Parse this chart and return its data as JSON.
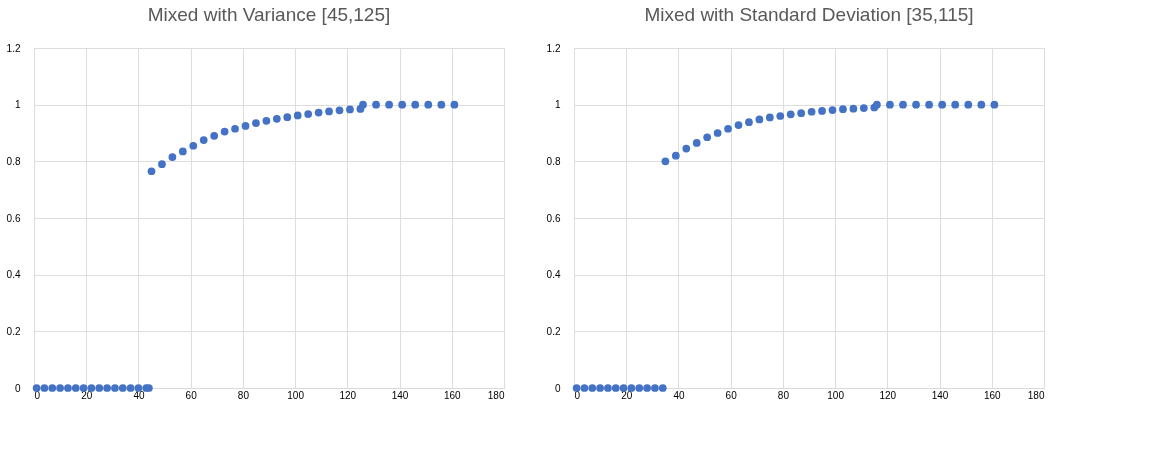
{
  "chart_data": [
    {
      "type": "scatter",
      "title": "Mixed with Variance [45,125]",
      "marker": "circle",
      "grid": true,
      "xlim": [
        0,
        180
      ],
      "xticks": [
        0,
        20,
        40,
        60,
        80,
        100,
        120,
        140,
        160,
        180
      ],
      "ylim": [
        0,
        1.2
      ],
      "yticks": [
        0,
        0.2,
        0.4,
        0.6,
        0.8,
        1,
        1.2
      ],
      "series": [
        {
          "color": "#4472c4",
          "x": [
            1,
            4,
            7,
            10,
            13,
            16,
            19,
            22,
            25,
            28,
            31,
            34,
            37,
            40,
            43,
            44,
            45,
            49,
            53,
            57,
            61,
            65,
            69,
            73,
            77,
            81,
            85,
            89,
            93,
            97,
            101,
            105,
            109,
            113,
            117,
            121,
            125,
            126,
            131,
            136,
            141,
            146,
            151,
            156,
            161
          ],
          "values": [
            0,
            0,
            0,
            0,
            0,
            0,
            0,
            0,
            0,
            0,
            0,
            0,
            0,
            0,
            0,
            0,
            0.765,
            0.79,
            0.815,
            0.835,
            0.855,
            0.875,
            0.89,
            0.905,
            0.915,
            0.925,
            0.935,
            0.943,
            0.95,
            0.956,
            0.962,
            0.967,
            0.972,
            0.976,
            0.98,
            0.983,
            0.985,
            1,
            1,
            1,
            1,
            1,
            1,
            1,
            1
          ]
        }
      ]
    },
    {
      "type": "scatter",
      "title": "Mixed with Standard Deviation [35,115]",
      "marker": "circle",
      "grid": true,
      "xlim": [
        0,
        180
      ],
      "xticks": [
        0,
        20,
        40,
        60,
        80,
        100,
        120,
        140,
        160,
        180
      ],
      "ylim": [
        0,
        1.2
      ],
      "yticks": [
        0,
        0.2,
        0.4,
        0.6,
        0.8,
        1,
        1.2
      ],
      "series": [
        {
          "color": "#4472c4",
          "x": [
            1,
            4,
            7,
            10,
            13,
            16,
            19,
            22,
            25,
            28,
            31,
            34,
            35,
            39,
            43,
            47,
            51,
            55,
            59,
            63,
            67,
            71,
            75,
            79,
            83,
            87,
            91,
            95,
            99,
            103,
            107,
            111,
            115,
            116,
            121,
            126,
            131,
            136,
            141,
            146,
            151,
            156,
            161
          ],
          "values": [
            0,
            0,
            0,
            0,
            0,
            0,
            0,
            0,
            0,
            0,
            0,
            0,
            0.8,
            0.82,
            0.845,
            0.865,
            0.885,
            0.9,
            0.915,
            0.928,
            0.938,
            0.948,
            0.955,
            0.96,
            0.966,
            0.97,
            0.975,
            0.978,
            0.981,
            0.984,
            0.986,
            0.988,
            0.99,
            1,
            1,
            1,
            1,
            1,
            1,
            1,
            1,
            1,
            1
          ]
        }
      ]
    }
  ]
}
